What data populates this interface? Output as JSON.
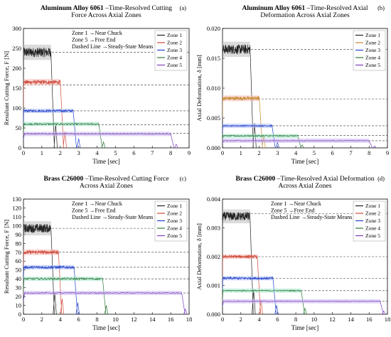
{
  "figure": {
    "background": "#ffffff",
    "mean_line_color": "#333333"
  },
  "chart_data": [
    {
      "type": "line",
      "panel_tag": "(a)",
      "title_bold": "Aluminum Alloy 6061",
      "title_rest": " –Time-Resolved Cutting",
      "title_line2": "Force Across Axial Zones",
      "xlabel": "Time [sec]",
      "ylabel": "Resultant Cutting Force, F [N]",
      "xlim": [
        0,
        9
      ],
      "ylim": [
        0,
        300
      ],
      "xticks": [
        0,
        1,
        2,
        3,
        4,
        5,
        6,
        7,
        8,
        9
      ],
      "yticks": [
        0,
        50,
        100,
        150,
        200,
        250,
        300
      ],
      "tick_decimals": 0,
      "grid": false,
      "legend_position": "top-right",
      "notes": [
        "Zone 1 →Near Chuck",
        "Zone 5 →Free End",
        "Dashed Line →Steady-State Means"
      ],
      "series": [
        {
          "name": "Zone 1",
          "color": "#222222",
          "band": "#bdbdbd",
          "start": 0.0,
          "end": 1.5,
          "tail": 1.75,
          "steady": 240,
          "noise": 12,
          "mean": 240
        },
        {
          "name": "Zone 2",
          "color": "#d04a3a",
          "band": "#f6b8b3",
          "start": 0.0,
          "end": 2.0,
          "tail": 2.25,
          "steady": 165,
          "noise": 5,
          "mean": 158
        },
        {
          "name": "Zone 3",
          "color": "#2244cc",
          "band": "#a9b8f5",
          "start": 0.0,
          "end": 2.7,
          "tail": 3.0,
          "steady": 93,
          "noise": 3,
          "mean": 93
        },
        {
          "name": "Zone 4",
          "color": "#2f7a3a",
          "band": "#9ee6c8",
          "start": 0.0,
          "end": 4.1,
          "tail": 4.35,
          "steady": 60,
          "noise": 2,
          "mean": 58
        },
        {
          "name": "Zone 5",
          "color": "#7a3fc0",
          "band": "#c9b2ef",
          "start": 0.0,
          "end": 8.0,
          "tail": 8.3,
          "steady": 35,
          "noise": 1,
          "mean": 37
        }
      ]
    },
    {
      "type": "line",
      "panel_tag": "(b)",
      "title_bold": "Aluminum Alloy 6061",
      "title_rest": " –Time-Resolved Axial",
      "title_line2": "Deformation Across Axial Zones",
      "xlabel": "Time [sec]",
      "ylabel": "Axial Deformation, δ [mm]",
      "xlim": [
        0,
        9
      ],
      "ylim": [
        0,
        0.02
      ],
      "xticks": [
        0,
        1,
        2,
        3,
        4,
        5,
        6,
        7,
        8,
        9
      ],
      "yticks": [
        0.0,
        0.005,
        0.01,
        0.015,
        0.02
      ],
      "tick_decimals": 3,
      "grid": false,
      "legend_position": "top-right",
      "notes": [],
      "series": [
        {
          "name": "Zone 1",
          "color": "#222222",
          "band": "#bdbdbd",
          "start": 0.0,
          "end": 1.5,
          "tail": 1.75,
          "steady": 0.0165,
          "noise": 0.0008,
          "mean": 0.0165
        },
        {
          "name": "Zone 2",
          "color": "#c58a2a",
          "band": "#f6b8b3",
          "start": 0.0,
          "end": 2.0,
          "tail": 2.25,
          "steady": 0.0083,
          "noise": 0.0003,
          "mean": 0.0082
        },
        {
          "name": "Zone 3",
          "color": "#2244cc",
          "band": "#a9b8f5",
          "start": 0.0,
          "end": 2.7,
          "tail": 3.0,
          "steady": 0.0037,
          "noise": 0.0001,
          "mean": 0.0037
        },
        {
          "name": "Zone 4",
          "color": "#2f7a3a",
          "band": "#9ee6c8",
          "start": 0.0,
          "end": 4.1,
          "tail": 4.35,
          "steady": 0.002,
          "noise": 0.0001,
          "mean": 0.0021
        },
        {
          "name": "Zone 5",
          "color": "#7a3fc0",
          "band": "#c9b2ef",
          "start": 0.0,
          "end": 8.0,
          "tail": 8.3,
          "steady": 0.0012,
          "noise": 5e-05,
          "mean": 0.0012
        }
      ]
    },
    {
      "type": "line",
      "panel_tag": "(c)",
      "title_bold": "Brass C26000",
      "title_rest": " –Time-Resolved Cutting Force",
      "title_line2": "Across Axial Zones",
      "xlabel": "Time [sec]",
      "ylabel": "Resultant Cutting Force, F [N]",
      "xlim": [
        0,
        18
      ],
      "ylim": [
        0,
        130
      ],
      "xticks": [
        0,
        2,
        4,
        6,
        8,
        10,
        12,
        14,
        16,
        18
      ],
      "yticks": [
        0,
        10,
        20,
        30,
        40,
        50,
        60,
        70,
        80,
        90,
        100,
        110,
        120,
        130
      ],
      "tick_decimals": 0,
      "grid": false,
      "legend_position": "top-right",
      "notes": [
        "Zone 1 →Near Chuck",
        "Zone 5 →Free End",
        "Dashed Line →Steady-State Means"
      ],
      "series": [
        {
          "name": "Zone 1",
          "color": "#222222",
          "band": "#bdbdbd",
          "start": 0.0,
          "end": 3.0,
          "tail": 3.4,
          "steady": 97,
          "noise": 5,
          "mean": 97
        },
        {
          "name": "Zone 2",
          "color": "#d04a3a",
          "band": "#f6b8b3",
          "start": 0.0,
          "end": 3.8,
          "tail": 4.2,
          "steady": 70,
          "noise": 2,
          "mean": 70
        },
        {
          "name": "Zone 3",
          "color": "#2244cc",
          "band": "#a9b8f5",
          "start": 0.0,
          "end": 5.5,
          "tail": 5.9,
          "steady": 53,
          "noise": 1.5,
          "mean": 53
        },
        {
          "name": "Zone 4",
          "color": "#2f7a3a",
          "band": "#9ee6c8",
          "start": 0.0,
          "end": 8.6,
          "tail": 9.0,
          "steady": 40,
          "noise": 1.2,
          "mean": 40
        },
        {
          "name": "Zone 5",
          "color": "#7a3fc0",
          "band": "#c9b2ef",
          "start": 0.0,
          "end": 17.2,
          "tail": 17.6,
          "steady": 24,
          "noise": 0.6,
          "mean": 24
        }
      ]
    },
    {
      "type": "line",
      "panel_tag": "(d)",
      "title_bold": "Brass C26000",
      "title_rest": " –Time-Resolved Axial Deformation",
      "title_line2": "Across Axial Zones",
      "xlabel": "Time [sec]",
      "ylabel": "Axial Deformation, δ [mm]",
      "xlim": [
        0,
        18
      ],
      "ylim": [
        0,
        0.004
      ],
      "xticks": [
        0,
        2,
        4,
        6,
        8,
        10,
        12,
        14,
        16,
        18
      ],
      "yticks": [
        0.0,
        0.001,
        0.002,
        0.003,
        0.004
      ],
      "tick_decimals": 3,
      "grid": false,
      "legend_position": "top-right",
      "notes": [
        "Zone 1 →Near Chuck",
        "Zone 5 →Free End",
        "Dashed Line →Steady-State Means"
      ],
      "series": [
        {
          "name": "Zone 1",
          "color": "#222222",
          "band": "#bdbdbd",
          "start": 0.0,
          "end": 3.0,
          "tail": 3.4,
          "steady": 0.0034,
          "noise": 0.00015,
          "mean": 0.0035
        },
        {
          "name": "Zone 2",
          "color": "#d04a3a",
          "band": "#f6b8b3",
          "start": 0.0,
          "end": 3.8,
          "tail": 4.2,
          "steady": 0.002,
          "noise": 5e-05,
          "mean": 0.002
        },
        {
          "name": "Zone 3",
          "color": "#2244cc",
          "band": "#a9b8f5",
          "start": 0.0,
          "end": 5.5,
          "tail": 5.9,
          "steady": 0.00125,
          "noise": 4e-05,
          "mean": 0.00125
        },
        {
          "name": "Zone 4",
          "color": "#2f7a3a",
          "band": "#9ee6c8",
          "start": 0.0,
          "end": 8.6,
          "tail": 9.0,
          "steady": 0.00082,
          "noise": 2e-05,
          "mean": 0.00082
        },
        {
          "name": "Zone 5",
          "color": "#7a3fc0",
          "band": "#c9b2ef",
          "start": 0.0,
          "end": 17.2,
          "tail": 17.6,
          "steady": 0.00045,
          "noise": 1e-05,
          "mean": 0.00045
        }
      ]
    }
  ]
}
